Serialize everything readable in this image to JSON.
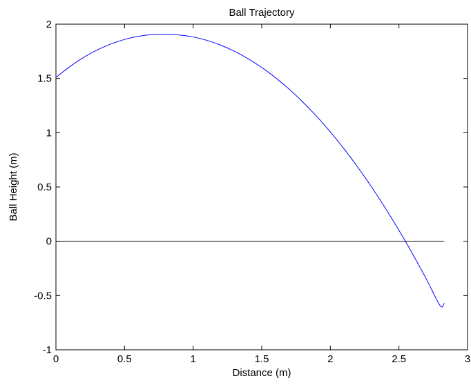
{
  "chart_data": {
    "type": "line",
    "title": "Ball Trajectory",
    "xlabel": "Distance (m)",
    "ylabel": "Ball Height (m)",
    "xlim": [
      0,
      3
    ],
    "ylim": [
      -1,
      2
    ],
    "xticks": [
      "0",
      "0.5",
      "1",
      "1.5",
      "2",
      "2.5",
      "3"
    ],
    "yticks": [
      "-1",
      "-0.5",
      "0",
      "0.5",
      "1",
      "1.5",
      "2"
    ],
    "grid": false,
    "series": [
      {
        "color": "#0000ff",
        "x": [
          0,
          0.1,
          0.2,
          0.3,
          0.4,
          0.5,
          0.6,
          0.7,
          0.8,
          0.9,
          1.0,
          1.1,
          1.2,
          1.3,
          1.4,
          1.5,
          1.6,
          1.7,
          1.8,
          1.9,
          2.0,
          2.1,
          2.2,
          2.3,
          2.4,
          2.5,
          2.6,
          2.7,
          2.8,
          2.83
        ],
        "y": [
          1.51,
          1.607,
          1.692,
          1.762,
          1.817,
          1.859,
          1.888,
          1.904,
          1.908,
          1.9,
          1.882,
          1.851,
          1.807,
          1.751,
          1.682,
          1.601,
          1.507,
          1.401,
          1.282,
          1.151,
          1.007,
          0.851,
          0.682,
          0.501,
          0.307,
          0.101,
          -0.118,
          -0.349,
          -0.593,
          -0.57
        ]
      },
      {
        "color": "#000000",
        "x": [
          0,
          2.83
        ],
        "y": [
          0,
          0
        ]
      }
    ]
  }
}
